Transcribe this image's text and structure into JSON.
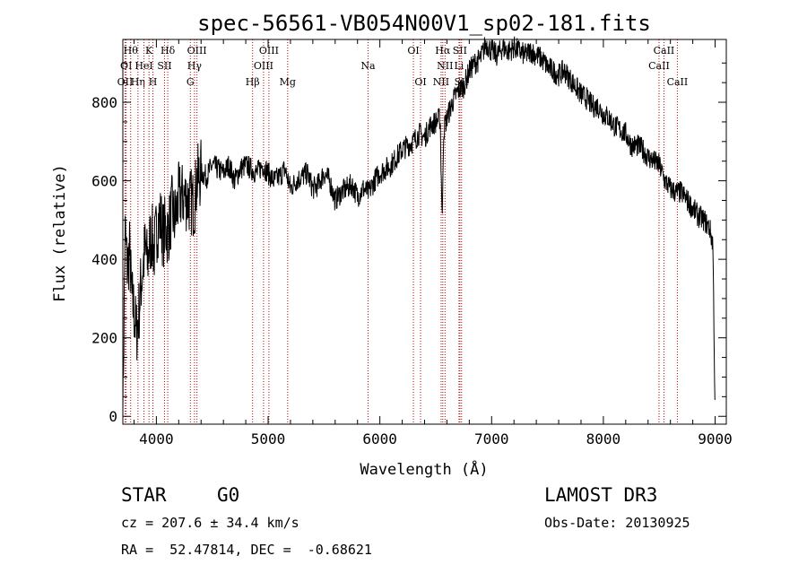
{
  "chart_data": {
    "type": "line",
    "title": "spec-56561-VB054N00V1_sp02-181.fits",
    "xlabel": "Wavelength (Å)",
    "ylabel": "Flux (relative)",
    "xlim": [
      3700,
      9100
    ],
    "ylim": [
      -20,
      960
    ],
    "xticks": [
      4000,
      5000,
      6000,
      7000,
      8000,
      9000
    ],
    "yticks": [
      0,
      200,
      400,
      600,
      800
    ],
    "series": [
      {
        "name": "flux",
        "x": [
          3700,
          3720,
          3740,
          3760,
          3780,
          3800,
          3820,
          3840,
          3860,
          3880,
          3900,
          3920,
          3940,
          3960,
          3980,
          4000,
          4020,
          4040,
          4060,
          4080,
          4100,
          4120,
          4140,
          4160,
          4180,
          4200,
          4250,
          4300,
          4340,
          4360,
          4400,
          4450,
          4500,
          4550,
          4600,
          4650,
          4700,
          4750,
          4800,
          4850,
          4900,
          4950,
          5000,
          5050,
          5100,
          5150,
          5200,
          5250,
          5300,
          5350,
          5400,
          5450,
          5500,
          5550,
          5600,
          5650,
          5700,
          5750,
          5800,
          5850,
          5900,
          5950,
          6000,
          6050,
          6100,
          6150,
          6200,
          6250,
          6300,
          6350,
          6400,
          6450,
          6500,
          6540,
          6550,
          6560,
          6565,
          6570,
          6580,
          6600,
          6650,
          6700,
          6750,
          6800,
          6850,
          6900,
          6950,
          7000,
          7050,
          7100,
          7150,
          7200,
          7250,
          7300,
          7350,
          7400,
          7450,
          7500,
          7550,
          7600,
          7650,
          7700,
          7750,
          7800,
          7850,
          7900,
          7950,
          8000,
          8050,
          8100,
          8150,
          8200,
          8250,
          8300,
          8350,
          8400,
          8450,
          8500,
          8550,
          8600,
          8650,
          8700,
          8750,
          8800,
          8850,
          8900,
          8950,
          8980,
          9000
        ],
        "values": [
          0,
          470,
          380,
          420,
          300,
          270,
          210,
          250,
          330,
          380,
          430,
          390,
          440,
          460,
          420,
          470,
          500,
          500,
          460,
          480,
          470,
          490,
          530,
          500,
          520,
          560,
          560,
          550,
          540,
          600,
          620,
          610,
          640,
          630,
          620,
          640,
          600,
          630,
          640,
          630,
          620,
          640,
          620,
          600,
          610,
          630,
          580,
          600,
          610,
          620,
          580,
          590,
          620,
          600,
          550,
          570,
          580,
          590,
          560,
          580,
          570,
          600,
          620,
          630,
          640,
          660,
          680,
          690,
          700,
          720,
          710,
          740,
          750,
          760,
          600,
          500,
          640,
          720,
          740,
          760,
          800,
          830,
          840,
          880,
          900,
          910,
          950,
          930,
          920,
          940,
          930,
          940,
          930,
          920,
          930,
          920,
          910,
          890,
          880,
          870,
          880,
          860,
          840,
          820,
          810,
          790,
          790,
          770,
          760,
          740,
          730,
          720,
          690,
          690,
          680,
          660,
          650,
          640,
          600,
          580,
          570,
          570,
          550,
          530,
          510,
          500,
          480,
          440,
          0
        ]
      }
    ],
    "lines": [
      {
        "wl": 3720,
        "label": "OII",
        "row": 2
      },
      {
        "wl": 3730,
        "label": "OI",
        "row": 1
      },
      {
        "wl": 3770,
        "label": "Hθ",
        "row": 0
      },
      {
        "wl": 3835,
        "label": "Hη",
        "row": 2
      },
      {
        "wl": 3889,
        "label": "HeI",
        "row": 1
      },
      {
        "wl": 3934,
        "label": "K",
        "row": 0
      },
      {
        "wl": 3969,
        "label": "H",
        "row": 2
      },
      {
        "wl": 4073,
        "label": "SII",
        "row": 1
      },
      {
        "wl": 4102,
        "label": "Hδ",
        "row": 0
      },
      {
        "wl": 4304,
        "label": "G",
        "row": 2
      },
      {
        "wl": 4341,
        "label": "Hγ",
        "row": 1
      },
      {
        "wl": 4363,
        "label": "OIII",
        "row": 0
      },
      {
        "wl": 4861,
        "label": "Hβ",
        "row": 2
      },
      {
        "wl": 4959,
        "label": "OIII",
        "row": 1
      },
      {
        "wl": 5007,
        "label": "OIII",
        "row": 0
      },
      {
        "wl": 5175,
        "label": "Mg",
        "row": 2
      },
      {
        "wl": 5894,
        "label": "Na",
        "row": 1
      },
      {
        "wl": 6300,
        "label": "OI",
        "row": 0
      },
      {
        "wl": 6364,
        "label": "OI",
        "row": 2
      },
      {
        "wl": 6548,
        "label": "NII",
        "row": 2
      },
      {
        "wl": 6563,
        "label": "Hα",
        "row": 0
      },
      {
        "wl": 6583,
        "label": "NII",
        "row": 1
      },
      {
        "wl": 6708,
        "label": "Li",
        "row": 1
      },
      {
        "wl": 6716,
        "label": "SII",
        "row": 0
      },
      {
        "wl": 6731,
        "label": "SII",
        "row": 2
      },
      {
        "wl": 8498,
        "label": "CaII",
        "row": 1
      },
      {
        "wl": 8542,
        "label": "CaII",
        "row": 0
      },
      {
        "wl": 8662,
        "label": "CaII",
        "row": 2
      }
    ],
    "grid": false
  },
  "info": {
    "class": "STAR",
    "subclass": "G0",
    "survey": "LAMOST DR3",
    "cz": "cz = 207.6 ± 34.4 km/s",
    "obsdate": "Obs-Date: 20130925",
    "radec": "RA =  52.47814, DEC =  -0.68621"
  }
}
